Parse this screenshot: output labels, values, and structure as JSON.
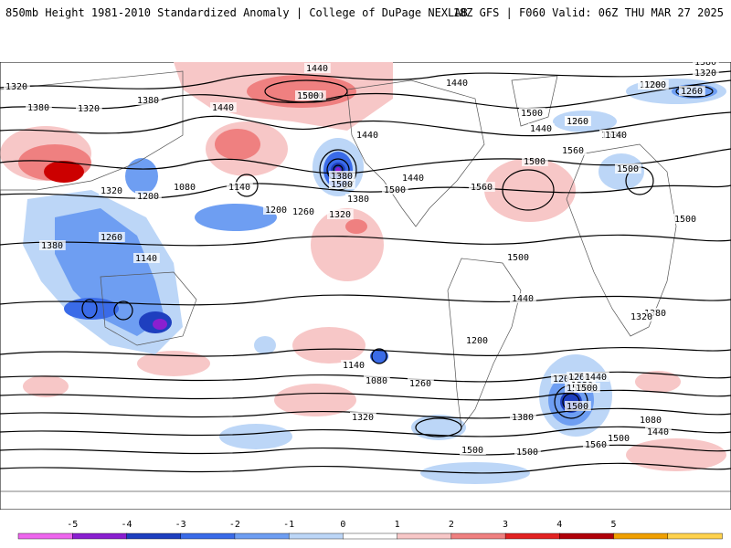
{
  "header": {
    "left_title": "850mb Height 1981-2010 Standardized Anomaly | College of DuPage NEXLAB",
    "right_title": "18Z GFS | F060 Valid: 06Z THU MAR 27 2025"
  },
  "colorbar": {
    "ticks": [
      "-5",
      "-4",
      "-3",
      "-2",
      "-1",
      "0",
      "1",
      "2",
      "3",
      "4",
      "5"
    ],
    "colors": [
      "#ee66ee",
      "#8a1fd0",
      "#1e3fbf",
      "#3a6be8",
      "#6e9ef2",
      "#bcd6f7",
      "#ffffff",
      "#f7c7c7",
      "#ef8080",
      "#e22222",
      "#b0000a",
      "#f0a000",
      "#ffd24d"
    ]
  },
  "map": {
    "contour_labels": [
      "1440",
      "1500",
      "1380",
      "1320",
      "1260",
      "1200",
      "1500",
      "1440",
      "1380",
      "1320",
      "1380",
      "1440",
      "1500",
      "1560",
      "1500",
      "1440",
      "1500",
      "1560",
      "1500",
      "1380",
      "1440",
      "1500",
      "1560",
      "1500",
      "1500",
      "1440",
      "1320",
      "1260",
      "1200",
      "1140",
      "1080",
      "1200",
      "1260",
      "1320",
      "1500",
      "1560",
      "1500",
      "1440",
      "1380",
      "1320",
      "1260",
      "1200",
      "1140",
      "1080",
      "1140",
      "1200",
      "1260",
      "1320",
      "1380",
      "1500",
      "1440",
      "1380",
      "1320",
      "1200",
      "1080",
      "1140",
      "1260",
      "1320",
      "1380",
      "1500",
      "1500",
      "1560",
      "1500",
      "1440"
    ],
    "anomaly_colors": {
      "strong_positive": "#cc0000",
      "positive": "#ef8080",
      "weak_positive": "#f7c7c7",
      "weak_negative": "#bcd6f7",
      "negative": "#6e9ef2",
      "strong_negative": "#3a6be8",
      "extreme_negative": "#1e3fbf",
      "extreme_negative_core": "#8a1fd0"
    }
  }
}
